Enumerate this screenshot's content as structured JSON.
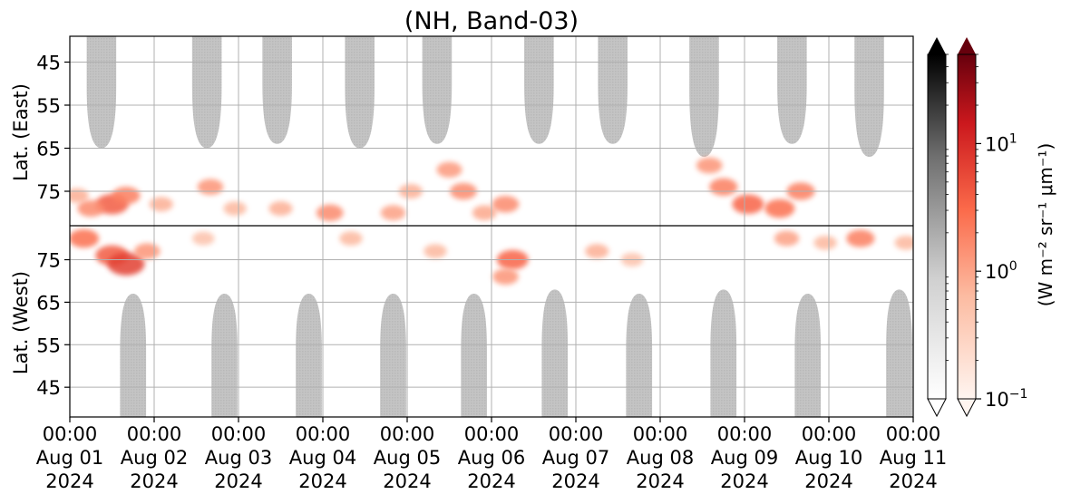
{
  "chart_data": {
    "type": "heatmap",
    "title": "(NH, Band-03)",
    "x_axis": {
      "range": [
        "2024-08-01 00:00",
        "2024-08-11 00:00"
      ],
      "ticks": [
        {
          "time": "00:00",
          "date": "Aug 01",
          "year": "2024"
        },
        {
          "time": "00:00",
          "date": "Aug 02",
          "year": "2024"
        },
        {
          "time": "00:00",
          "date": "Aug 03",
          "year": "2024"
        },
        {
          "time": "00:00",
          "date": "Aug 04",
          "year": "2024"
        },
        {
          "time": "00:00",
          "date": "Aug 05",
          "year": "2024"
        },
        {
          "time": "00:00",
          "date": "Aug 06",
          "year": "2024"
        },
        {
          "time": "00:00",
          "date": "Aug 07",
          "year": "2024"
        },
        {
          "time": "00:00",
          "date": "Aug 08",
          "year": "2024"
        },
        {
          "time": "00:00",
          "date": "Aug 09",
          "year": "2024"
        },
        {
          "time": "00:00",
          "date": "Aug 10",
          "year": "2024"
        },
        {
          "time": "00:00",
          "date": "Aug 11",
          "year": "2024"
        }
      ]
    },
    "upper_axis": {
      "label": "Lat. (East)",
      "range": [
        39,
        83
      ],
      "ticks": [
        45,
        55,
        65,
        75
      ]
    },
    "lower_axis": {
      "label": "Lat. (West)",
      "range": [
        83,
        38
      ],
      "ticks": [
        75,
        65,
        55,
        45
      ]
    },
    "grid": true,
    "gray_regions": {
      "description_colormap": "gray",
      "east": [
        {
          "center": "2024-08-01 09:00",
          "half_width_h": 4.2,
          "lat_min": 65
        },
        {
          "center": "2024-08-02 15:00",
          "half_width_h": 4.2,
          "lat_min": 65
        },
        {
          "center": "2024-08-03 11:00",
          "half_width_h": 4.2,
          "lat_min": 64
        },
        {
          "center": "2024-08-04 10:30",
          "half_width_h": 4.2,
          "lat_min": 65
        },
        {
          "center": "2024-08-05 08:30",
          "half_width_h": 4.2,
          "lat_min": 64
        },
        {
          "center": "2024-08-06 13:30",
          "half_width_h": 4.2,
          "lat_min": 64
        },
        {
          "center": "2024-08-07 10:30",
          "half_width_h": 4.2,
          "lat_min": 64
        },
        {
          "center": "2024-08-08 12:30",
          "half_width_h": 4.2,
          "lat_min": 67
        },
        {
          "center": "2024-08-09 13:30",
          "half_width_h": 4.2,
          "lat_min": 64
        },
        {
          "center": "2024-08-10 11:30",
          "half_width_h": 4.2,
          "lat_min": 67
        }
      ],
      "west": [
        {
          "center": "2024-08-01 18:00",
          "half_width_h": 3.7,
          "lat_top": 67
        },
        {
          "center": "2024-08-02 20:00",
          "half_width_h": 3.7,
          "lat_top": 67
        },
        {
          "center": "2024-08-03 20:00",
          "half_width_h": 3.7,
          "lat_top": 67
        },
        {
          "center": "2024-08-04 20:00",
          "half_width_h": 3.7,
          "lat_top": 67
        },
        {
          "center": "2024-08-05 19:00",
          "half_width_h": 3.7,
          "lat_top": 67
        },
        {
          "center": "2024-08-06 18:00",
          "half_width_h": 3.7,
          "lat_top": 68
        },
        {
          "center": "2024-08-07 18:00",
          "half_width_h": 3.7,
          "lat_top": 67
        },
        {
          "center": "2024-08-08 18:00",
          "half_width_h": 3.7,
          "lat_top": 68
        },
        {
          "center": "2024-08-09 18:00",
          "half_width_h": 3.7,
          "lat_top": 67
        },
        {
          "center": "2024-08-10 20:00",
          "half_width_h": 3.7,
          "lat_top": 68
        }
      ]
    },
    "red_patches": [
      {
        "half": "east",
        "time": "2024-08-01 02:00",
        "lat": 76,
        "value": 0.6
      },
      {
        "half": "east",
        "time": "2024-08-01 12:00",
        "lat": 78,
        "value": 3.0
      },
      {
        "half": "east",
        "time": "2024-08-01 06:00",
        "lat": 79,
        "value": 1.2
      },
      {
        "half": "east",
        "time": "2024-08-01 16:00",
        "lat": 76,
        "value": 1.5
      },
      {
        "half": "west",
        "time": "2024-08-01 04:00",
        "lat": 80,
        "value": 2.0
      },
      {
        "half": "west",
        "time": "2024-08-01 12:00",
        "lat": 76,
        "value": 3.0
      },
      {
        "half": "west",
        "time": "2024-08-01 16:00",
        "lat": 74,
        "value": 5.0
      },
      {
        "half": "west",
        "time": "2024-08-01 22:00",
        "lat": 77,
        "value": 1.0
      },
      {
        "half": "east",
        "time": "2024-08-02 02:00",
        "lat": 78,
        "value": 0.6
      },
      {
        "half": "east",
        "time": "2024-08-02 16:00",
        "lat": 74,
        "value": 1.0
      },
      {
        "half": "east",
        "time": "2024-08-02 23:00",
        "lat": 79,
        "value": 0.5
      },
      {
        "half": "west",
        "time": "2024-08-02 14:00",
        "lat": 80,
        "value": 0.4
      },
      {
        "half": "east",
        "time": "2024-08-03 12:00",
        "lat": 79,
        "value": 0.6
      },
      {
        "half": "east",
        "time": "2024-08-04 02:00",
        "lat": 80,
        "value": 1.2
      },
      {
        "half": "west",
        "time": "2024-08-04 08:00",
        "lat": 80,
        "value": 0.5
      },
      {
        "half": "east",
        "time": "2024-08-04 20:00",
        "lat": 80,
        "value": 0.8
      },
      {
        "half": "east",
        "time": "2024-08-05 01:00",
        "lat": 75,
        "value": 0.6
      },
      {
        "half": "east",
        "time": "2024-08-05 12:00",
        "lat": 70,
        "value": 0.9
      },
      {
        "half": "east",
        "time": "2024-08-05 16:00",
        "lat": 75,
        "value": 1.2
      },
      {
        "half": "east",
        "time": "2024-08-05 22:00",
        "lat": 80,
        "value": 0.7
      },
      {
        "half": "west",
        "time": "2024-08-05 08:00",
        "lat": 77,
        "value": 0.5
      },
      {
        "half": "east",
        "time": "2024-08-06 04:00",
        "lat": 78,
        "value": 1.2
      },
      {
        "half": "west",
        "time": "2024-08-06 06:00",
        "lat": 75,
        "value": 2.5
      },
      {
        "half": "west",
        "time": "2024-08-06 04:00",
        "lat": 71,
        "value": 1.0
      },
      {
        "half": "west",
        "time": "2024-08-07 06:00",
        "lat": 77,
        "value": 0.6
      },
      {
        "half": "west",
        "time": "2024-08-07 16:00",
        "lat": 75,
        "value": 0.4
      },
      {
        "half": "east",
        "time": "2024-08-08 14:00",
        "lat": 69,
        "value": 1.0
      },
      {
        "half": "east",
        "time": "2024-08-08 18:00",
        "lat": 74,
        "value": 1.5
      },
      {
        "half": "east",
        "time": "2024-08-09 01:00",
        "lat": 78,
        "value": 2.5
      },
      {
        "half": "east",
        "time": "2024-08-09 10:00",
        "lat": 79,
        "value": 2.0
      },
      {
        "half": "east",
        "time": "2024-08-09 16:00",
        "lat": 75,
        "value": 1.5
      },
      {
        "half": "west",
        "time": "2024-08-09 12:00",
        "lat": 80,
        "value": 0.8
      },
      {
        "half": "west",
        "time": "2024-08-09 23:00",
        "lat": 79,
        "value": 0.5
      },
      {
        "half": "west",
        "time": "2024-08-10 09:00",
        "lat": 80,
        "value": 1.5
      },
      {
        "half": "west",
        "time": "2024-08-10 22:00",
        "lat": 79,
        "value": 0.5
      }
    ],
    "colorbars": [
      {
        "colormap": "Greys",
        "extend": "both"
      },
      {
        "colormap": "Reds",
        "extend": "both",
        "label": "(W m⁻² sr⁻¹ μm⁻¹)",
        "scale": "log",
        "range": [
          0.1,
          50
        ],
        "ticks": [
          {
            "value": 0.1,
            "base": "10",
            "exp": "−1"
          },
          {
            "value": 1,
            "base": "10",
            "exp": "0"
          },
          {
            "value": 10,
            "base": "10",
            "exp": "1"
          }
        ]
      }
    ]
  }
}
